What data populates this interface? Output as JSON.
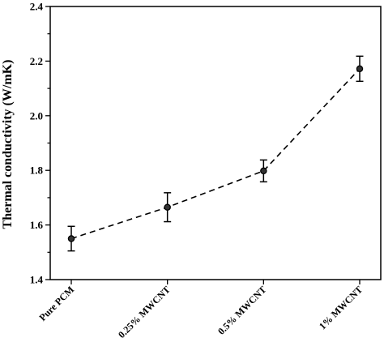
{
  "chart_data": {
    "type": "line",
    "categories": [
      "Pure PCM",
      "0.25% MWCNT",
      "0.5% MWCNT",
      "1% MWCNT"
    ],
    "series": [
      {
        "values": [
          1.55,
          1.665,
          1.798,
          2.172
        ],
        "errors": [
          0.045,
          0.053,
          0.04,
          0.046
        ]
      }
    ],
    "xlabel": "",
    "ylabel": "Thermal conductivity (W/mK)",
    "ylim": [
      1.4,
      2.4
    ],
    "yticks": [
      1.4,
      1.6,
      1.8,
      2.0,
      2.2,
      2.4
    ],
    "ytick_labels": [
      "1.4",
      "1.6",
      "1.8",
      "2.0",
      "2.2",
      "2.4"
    ],
    "grid": false,
    "line_style": "dashed",
    "marker": "circle",
    "colors": {
      "line": "#000000",
      "marker_fill": "#333333"
    }
  }
}
